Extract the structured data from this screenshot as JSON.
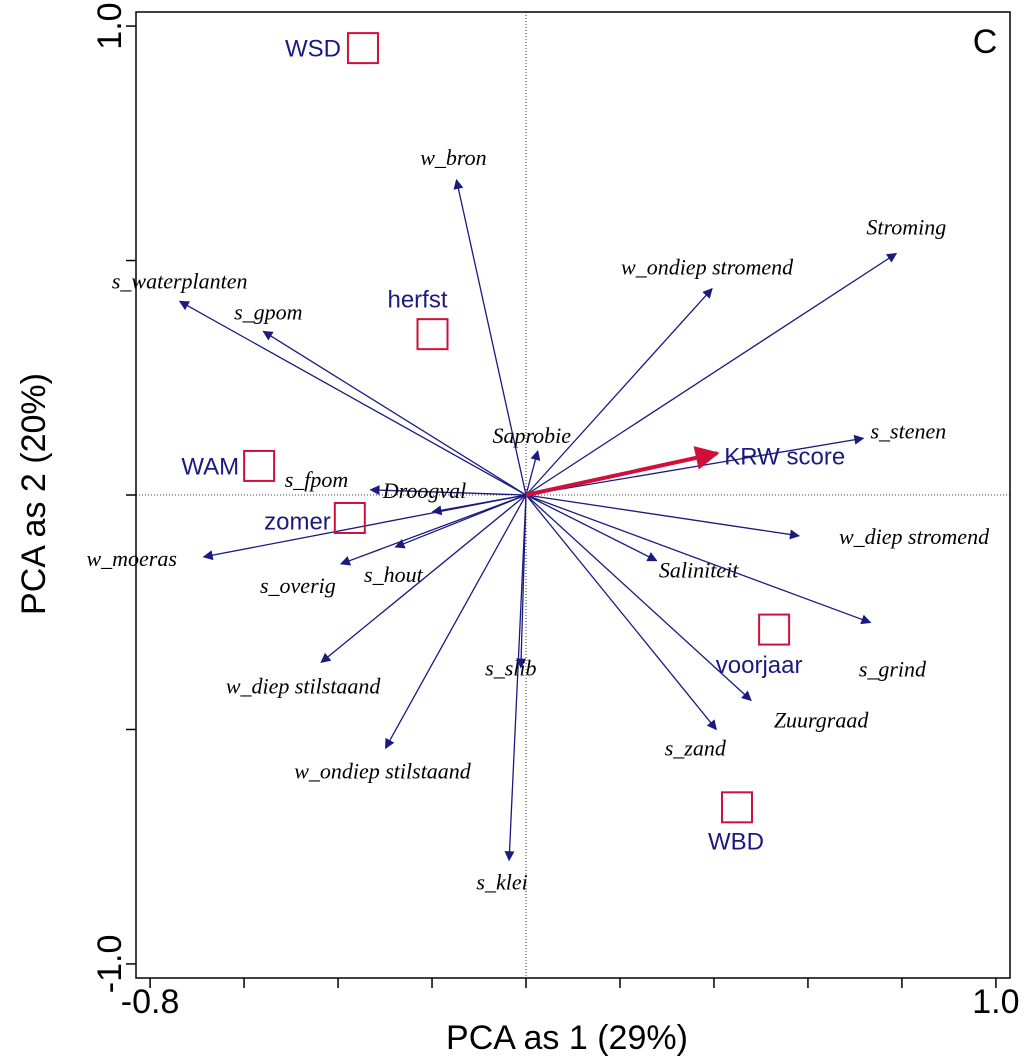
{
  "chart_data": {
    "type": "biplot",
    "panel_label": "C",
    "x_label": "PCA as 1 (29%)",
    "y_label": "PCA as 2 (20%)",
    "xlim": [
      -0.83,
      1.03
    ],
    "ylim": [
      -1.03,
      1.03
    ],
    "xticks": [
      -0.8,
      {
        "value": 1.0,
        "label": "1.0"
      }
    ],
    "xminorticks": [
      -0.6,
      -0.4,
      -0.2,
      0,
      0.2,
      0.4,
      0.6,
      0.8
    ],
    "yticks": [
      {
        "value": -1.0,
        "label": "-1.0"
      },
      {
        "value": 1.0,
        "label": "1.0"
      }
    ],
    "yminorticks": [
      -0.5,
      0,
      0.5
    ],
    "zero_lines": true,
    "vector_color": "#1a1a80",
    "vectors": [
      {
        "name": "w_bron",
        "x": -0.148,
        "y": 0.672
      },
      {
        "name": "Stroming",
        "x": 0.788,
        "y": 0.515
      },
      {
        "name": "w_ondiep stromend",
        "x": 0.396,
        "y": 0.44
      },
      {
        "name": "s_waterplanten",
        "x": -0.737,
        "y": 0.413
      },
      {
        "name": "s_gpom",
        "x": -0.559,
        "y": 0.349
      },
      {
        "name": "Saprobie",
        "x": 0.025,
        "y": 0.094
      },
      {
        "name": "s_stenen",
        "x": 0.718,
        "y": 0.121
      },
      {
        "name": "s_fpom",
        "x": -0.331,
        "y": 0.011
      },
      {
        "name": "Droogval",
        "x": -0.199,
        "y": -0.036
      },
      {
        "name": "w_moeras",
        "x": -0.686,
        "y": -0.132
      },
      {
        "name": "s_hout",
        "x": -0.278,
        "y": -0.111
      },
      {
        "name": "s_overig",
        "x": -0.394,
        "y": -0.147
      },
      {
        "name": "w_diep stromend",
        "x": 0.581,
        "y": -0.087
      },
      {
        "name": "Saliniteit",
        "x": 0.278,
        "y": -0.14
      },
      {
        "name": "s_grind",
        "x": 0.733,
        "y": -0.272
      },
      {
        "name": "s_slib",
        "x": -0.011,
        "y": -0.368
      },
      {
        "name": "w_diep stilstaand",
        "x": -0.436,
        "y": -0.357
      },
      {
        "name": "Zuurgraad",
        "x": 0.479,
        "y": -0.438
      },
      {
        "name": "s_zand",
        "x": 0.405,
        "y": -0.5
      },
      {
        "name": "w_ondiep stilstaand",
        "x": -0.299,
        "y": -0.54
      },
      {
        "name": "s_klei",
        "x": -0.036,
        "y": -0.779
      }
    ],
    "highlight_vector": {
      "name": "KRW score",
      "x": 0.407,
      "y": 0.089,
      "color": "#d0103a",
      "label_color": "#1a1a80"
    },
    "sample_color": "#d0103a",
    "sample_label_color": "#1a1a80",
    "samples": [
      {
        "name": "WSD",
        "x": -0.347,
        "y": 0.953
      },
      {
        "name": "herfst",
        "x": -0.199,
        "y": 0.343
      },
      {
        "name": "WAM",
        "x": -0.568,
        "y": 0.062
      },
      {
        "name": "zomer",
        "x": -0.375,
        "y": -0.049
      },
      {
        "name": "voorjaar",
        "x": 0.528,
        "y": -0.287
      },
      {
        "name": "WBD",
        "x": 0.449,
        "y": -0.666
      }
    ]
  }
}
